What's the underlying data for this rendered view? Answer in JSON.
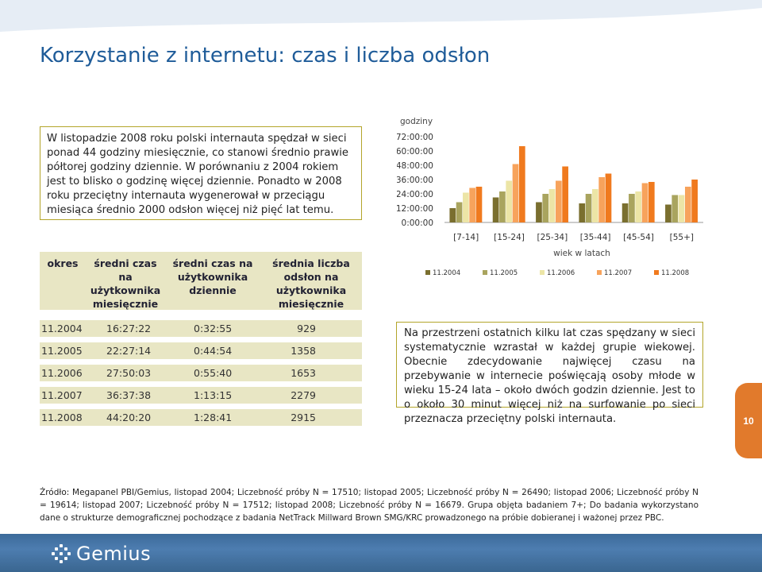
{
  "slide": {
    "title": "Korzystanie z internetu: czas i liczba odsłon",
    "page_number": "10",
    "summary": "W listopadzie 2008 roku polski internauta spędzał w sieci ponad 44 godziny miesięcznie, co stanowi średnio prawie półtorej godziny dziennie. W porównaniu z 2004 rokiem jest to blisko o godzinę więcej dziennie. Ponadto w 2008 roku przeciętny internauta wygenerował w przeciągu miesiąca średnio 2000 odsłon więcej niż pięć lat temu.",
    "description": "Na przestrzeni ostatnich kilku lat czas spędzany w sieci systematycznie wzrastał w każdej grupie wiekowej. Obecnie zdecydowanie najwięcej czasu na przebywanie w internecie poświęcają osoby młode w wieku 15-24 lata – około dwóch godzin dziennie. Jest to o około 30 minut więcej niż na surfowanie po sieci przeznacza przeciętny polski internauta.",
    "source": "Źródło: Megapanel PBI/Gemius, listopad 2004; Liczebność próby N = 17510; listopad 2005; Liczebność próby N = 26490; listopad 2006; Liczebność próby N = 19614; listopad 2007; Liczebność próby N = 17512; listopad 2008; Liczebność próby N = 16679. Grupa objęta badaniem 7+; Do badania wykorzystano dane o strukturze demograficznej pochodzące z badania NetTrack Millward Brown SMG/KRC prowadzonego na próbie dobieranej i ważonej przez PBC.",
    "logo_text": "Gemius"
  },
  "table": {
    "headers": [
      "okres",
      "średni czas na użytkownika miesięcznie",
      "średni czas na użytkownika dziennie",
      "średnia liczba odsłon na użytkownika miesięcznie"
    ],
    "rows": [
      [
        "11.2004",
        "16:27:22",
        "0:32:55",
        "929"
      ],
      [
        "11.2005",
        "22:27:14",
        "0:44:54",
        "1358"
      ],
      [
        "11.2006",
        "27:50:03",
        "0:55:40",
        "1653"
      ],
      [
        "11.2007",
        "36:37:38",
        "1:13:15",
        "2279"
      ],
      [
        "11.2008",
        "44:20:20",
        "1:28:41",
        "2915"
      ]
    ]
  },
  "chart_data": {
    "type": "bar",
    "title": "",
    "ylabel": "godziny",
    "xlabel": "wiek w latach",
    "categories": [
      "[7-14]",
      "[15-24]",
      "[25-34]",
      "[35-44]",
      "[45-54]",
      "[55+]"
    ],
    "y_ticks": [
      "0:00:00",
      "12:00:00",
      "24:00:00",
      "36:00:00",
      "48:00:00",
      "60:00:00",
      "72:00:00"
    ],
    "ylim": [
      0,
      72
    ],
    "legend_position": "bottom",
    "series": [
      {
        "name": "11.2004",
        "color": "#7a6f2f",
        "values": [
          12,
          21,
          17,
          16,
          16,
          15
        ]
      },
      {
        "name": "11.2005",
        "color": "#a9a45e",
        "values": [
          17,
          26,
          24,
          24,
          24,
          23
        ]
      },
      {
        "name": "11.2006",
        "color": "#ece5a6",
        "values": [
          25,
          35,
          28,
          28,
          26,
          23
        ]
      },
      {
        "name": "11.2007",
        "color": "#f7a35c",
        "values": [
          29,
          49,
          35,
          38,
          33,
          30
        ]
      },
      {
        "name": "11.2008",
        "color": "#f07a1e",
        "values": [
          30,
          64,
          47,
          41,
          34,
          36
        ]
      }
    ]
  }
}
